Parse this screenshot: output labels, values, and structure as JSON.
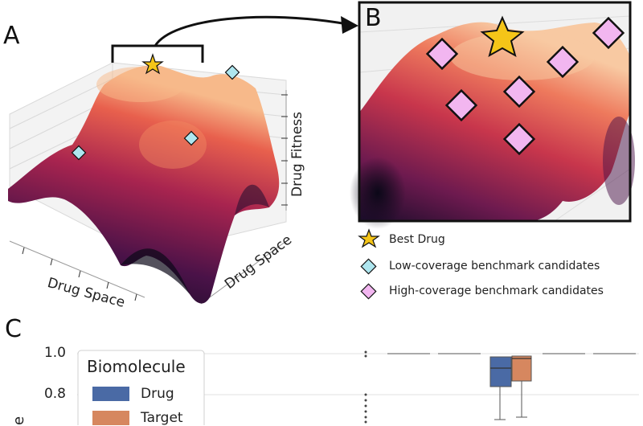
{
  "panels": {
    "a": "A",
    "b": "B",
    "c": "C"
  },
  "panel_a": {
    "x_axis_label": "Drug Space",
    "y_axis_label": "Drug Space",
    "z_axis_label": "Drug Fitness"
  },
  "legend": {
    "best": "Best Drug",
    "low": "Low-coverage benchmark candidates",
    "high": "High-coverage benchmark candidates"
  },
  "colors": {
    "star": "#f5c518",
    "low_marker": "#aee6ef",
    "high_marker": "#f2b6f0",
    "drug": "#4a6aa5",
    "target": "#d6875f"
  },
  "panel_c": {
    "yticks": [
      "1.0",
      "0.8"
    ],
    "ylabel_fragment": "e",
    "legend_title": "Biomolecule",
    "legend_items": [
      "Drug",
      "Target"
    ]
  }
}
